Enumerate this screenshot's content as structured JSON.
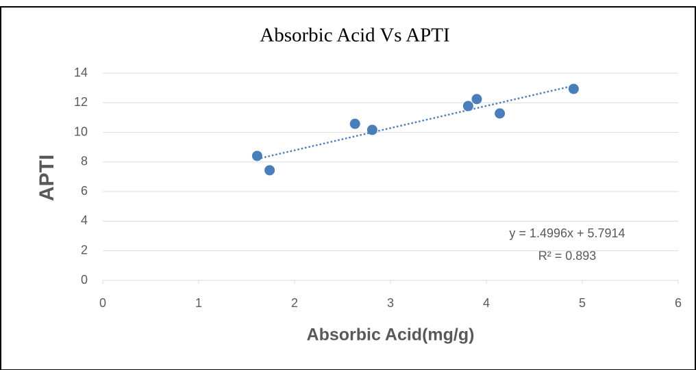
{
  "chart_data": {
    "type": "scatter",
    "title": "Absorbic Acid Vs APTI",
    "x_label": "Absorbic Acid(mg/g)",
    "y_label": "APTI",
    "x": [
      1.61,
      1.74,
      2.63,
      2.81,
      3.81,
      3.9,
      4.14,
      4.91
    ],
    "values": [
      8.41,
      7.44,
      10.58,
      10.17,
      11.78,
      12.25,
      11.28,
      12.94
    ],
    "color": "#4a7ebb",
    "xlim": [
      0,
      6
    ],
    "xticks": [
      0,
      1,
      2,
      3,
      4,
      5,
      6
    ],
    "ylim": [
      0,
      14
    ],
    "yticks": [
      0,
      2,
      4,
      6,
      8,
      10,
      12,
      14
    ],
    "grid": true,
    "trendline": {
      "slope": 1.4996,
      "intercept": 5.7914,
      "style": "dotted",
      "equation": "y = 1.4996x + 5.7914",
      "r2_label": "R² = 0.893"
    }
  }
}
